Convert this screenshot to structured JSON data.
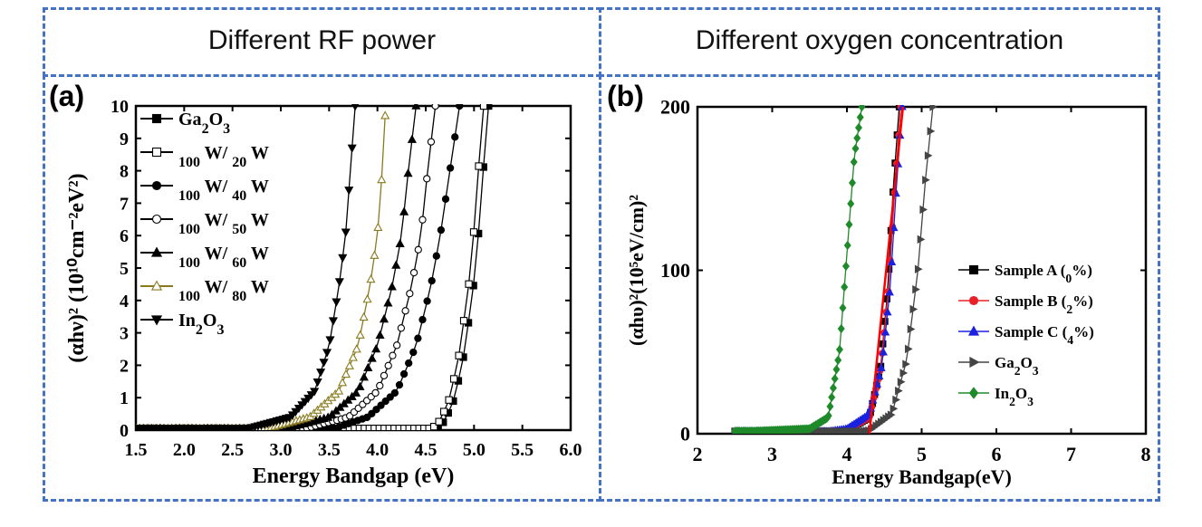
{
  "panel_a_header": "Different RF power",
  "panel_b_header": "Different oxygen concentration",
  "panel_a_label": "(a)",
  "panel_b_label": "(b)",
  "chart_data": [
    {
      "type": "line",
      "xlabel": "Energy Bandgap (eV)",
      "ylabel": "(αhν)² (10¹⁰cm⁻²eV²)",
      "xlim": [
        1.5,
        6.0
      ],
      "ylim": [
        0,
        10
      ],
      "xticks": [
        "1.5",
        "2.0",
        "2.5",
        "3.0",
        "3.5",
        "4.0",
        "4.5",
        "5.0",
        "5.5",
        "6.0"
      ],
      "yticks": [
        "0",
        "1",
        "2",
        "3",
        "4",
        "5",
        "6",
        "7",
        "8",
        "9",
        "10"
      ],
      "legend_position": "top-left",
      "series": [
        {
          "name": "Ga2O3",
          "marker": "filled-square",
          "color": "#000000",
          "onset": 4.6,
          "x": [
            4.6,
            4.7,
            4.8,
            4.9,
            5.0,
            5.05,
            5.1,
            5.15
          ],
          "y": [
            0,
            0.3,
            1.0,
            2.4,
            4.6,
            6.2,
            8.2,
            10
          ]
        },
        {
          "name": "100 W/ 20 W",
          "marker": "open-square",
          "color": "#000000",
          "onset": 4.55,
          "x": [
            4.55,
            4.65,
            4.75,
            4.85,
            4.95,
            5.0,
            5.05,
            5.1
          ],
          "y": [
            0,
            0.3,
            1.0,
            2.4,
            4.6,
            6.2,
            8.2,
            10
          ]
        },
        {
          "name": "100 W/ 40 W",
          "marker": "filled-circle",
          "color": "#000000",
          "onset": 3.5,
          "x": [
            3.5,
            3.9,
            4.2,
            4.4,
            4.55,
            4.65,
            4.75,
            4.85
          ],
          "y": [
            0,
            0.4,
            1.2,
            2.6,
            4.4,
            6.0,
            8.0,
            10
          ]
        },
        {
          "name": "100 W/ 50 W",
          "marker": "open-circle",
          "color": "#000000",
          "onset": 3.2,
          "x": [
            3.2,
            3.7,
            4.0,
            4.2,
            4.35,
            4.45,
            4.52,
            4.6
          ],
          "y": [
            0,
            0.4,
            1.2,
            2.6,
            4.4,
            6.0,
            8.0,
            10
          ]
        },
        {
          "name": "100 W/ 60 W",
          "marker": "filled-triangle-up",
          "color": "#000000",
          "onset": 3.0,
          "x": [
            3.0,
            3.5,
            3.8,
            4.0,
            4.15,
            4.25,
            4.32,
            4.4
          ],
          "y": [
            0,
            0.4,
            1.2,
            2.6,
            4.4,
            6.0,
            8.0,
            10
          ]
        },
        {
          "name": "100 W/ 80 W",
          "marker": "open-triangle-up",
          "color": "#8a7a1e",
          "onset": 2.8,
          "x": [
            2.8,
            3.3,
            3.6,
            3.8,
            3.92,
            4.0,
            4.05,
            4.08
          ],
          "y": [
            0,
            0.4,
            1.2,
            2.6,
            4.4,
            6.0,
            8.0,
            9.7
          ]
        },
        {
          "name": "In2O3",
          "marker": "filled-triangle-down",
          "color": "#000000",
          "onset": 2.6,
          "x": [
            2.6,
            3.1,
            3.35,
            3.5,
            3.6,
            3.67,
            3.72,
            3.77
          ],
          "y": [
            0,
            0.4,
            1.2,
            2.6,
            4.4,
            6.0,
            8.0,
            10
          ]
        }
      ]
    },
    {
      "type": "line",
      "xlabel": "Energy Bandgap(eV)",
      "ylabel": "(αhυ)²(10⁵eV/cm)²",
      "xlim": [
        2,
        8
      ],
      "ylim": [
        0,
        200
      ],
      "xticks": [
        "2",
        "3",
        "4",
        "5",
        "6",
        "7",
        "8"
      ],
      "yticks": [
        "0",
        "100",
        "200"
      ],
      "legend_position": "right",
      "series": [
        {
          "name": "Sample A (0%)",
          "marker": "filled-square",
          "color": "#000000",
          "x": [
            3.5,
            4.0,
            4.3,
            4.45,
            4.55,
            4.62,
            4.7
          ],
          "y": [
            0,
            2,
            10,
            40,
            90,
            150,
            200
          ]
        },
        {
          "name": "Sample B (2%)",
          "marker": "filled-circle",
          "color": "#e8202a",
          "x": [
            3.5,
            4.0,
            4.3,
            4.45,
            4.56,
            4.64,
            4.72
          ],
          "y": [
            0,
            2,
            10,
            40,
            90,
            150,
            200
          ]
        },
        {
          "name": "Sample C (4%)",
          "marker": "filled-triangle-up",
          "color": "#1a22e0",
          "x": [
            3.5,
            4.0,
            4.3,
            4.47,
            4.58,
            4.66,
            4.74
          ],
          "y": [
            0,
            3,
            12,
            42,
            90,
            150,
            200
          ]
        },
        {
          "name": "Ga2O3",
          "marker": "filled-triangle-right",
          "color": "#444444",
          "x": [
            3.8,
            4.3,
            4.6,
            4.8,
            4.95,
            5.05,
            5.15
          ],
          "y": [
            0,
            2,
            12,
            45,
            100,
            155,
            200
          ]
        },
        {
          "name": "In2O3",
          "marker": "filled-diamond",
          "color": "#1e8a2a",
          "x": [
            2.5,
            3.5,
            3.75,
            3.9,
            4.0,
            4.1,
            4.2
          ],
          "y": [
            1,
            3,
            10,
            50,
            110,
            170,
            200
          ]
        }
      ],
      "fit_line": {
        "color": "#ff0000",
        "x": [
          4.3,
          4.75
        ],
        "y": [
          0,
          200
        ]
      }
    }
  ]
}
